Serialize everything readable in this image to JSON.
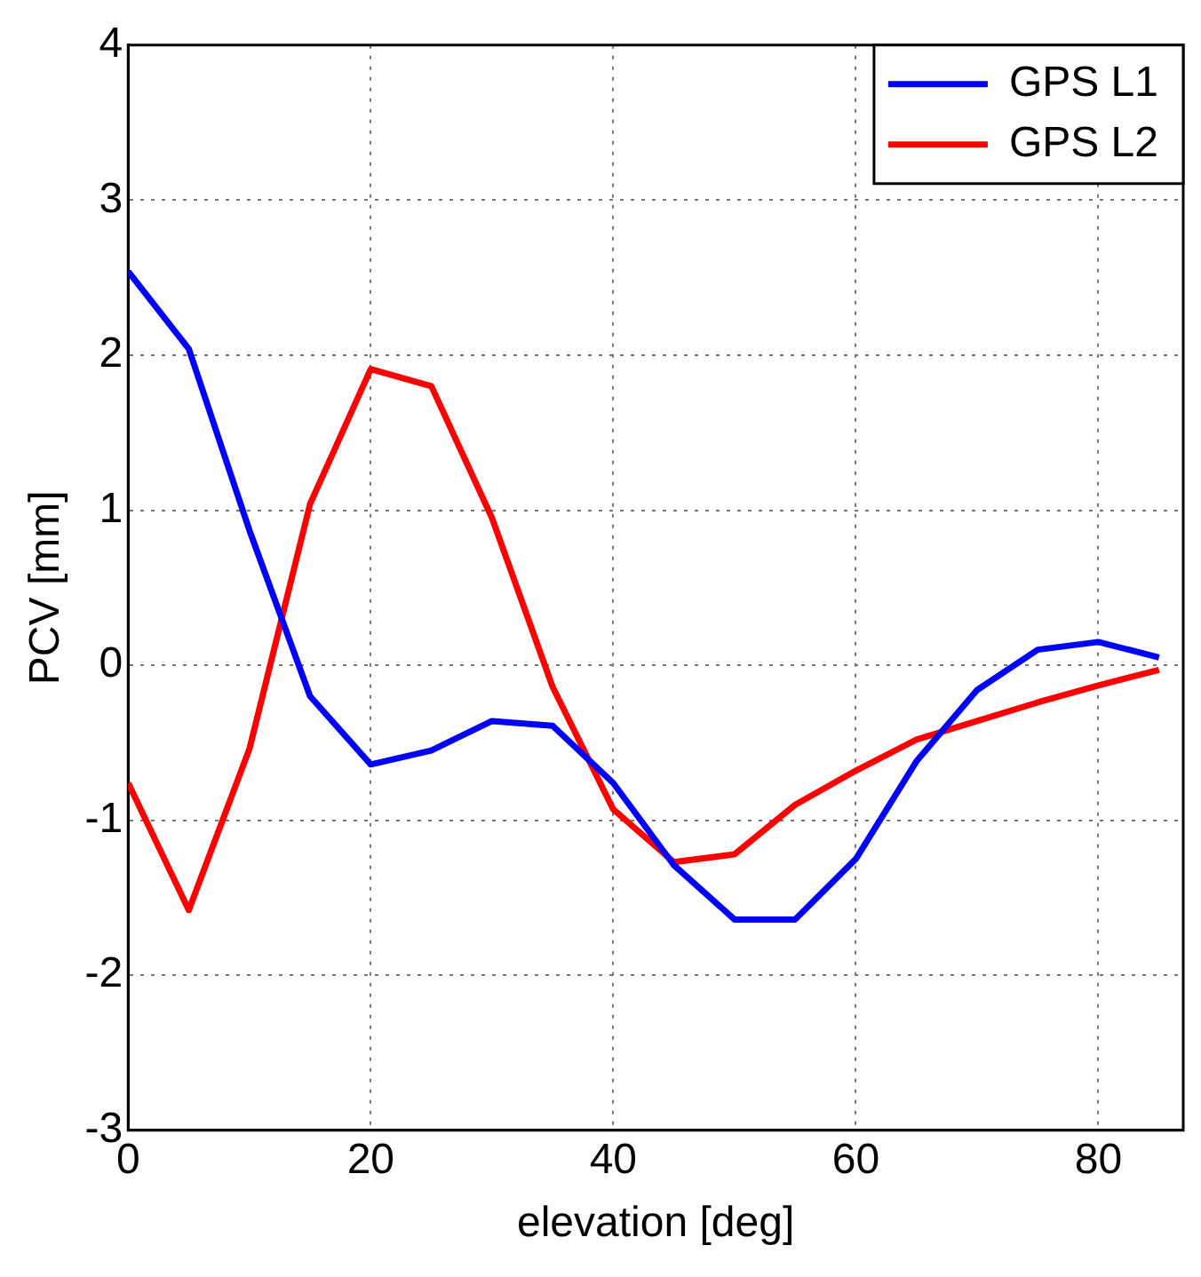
{
  "chart_data": {
    "type": "line",
    "xlabel": "elevation [deg]",
    "ylabel": "PCV [mm]",
    "x": [
      0,
      5,
      10,
      15,
      20,
      25,
      30,
      35,
      40,
      45,
      50,
      55,
      60,
      65,
      70,
      75,
      80,
      85
    ],
    "series": [
      {
        "name": "GPS L1",
        "color": "#0000ff",
        "values": [
          2.54,
          2.04,
          0.87,
          -0.2,
          -0.64,
          -0.55,
          -0.36,
          -0.39,
          -0.76,
          -1.29,
          -1.64,
          -1.64,
          -1.25,
          -0.62,
          -0.16,
          0.1,
          0.15,
          0.05
        ]
      },
      {
        "name": "GPS L2",
        "color": "#ff0000",
        "values": [
          -0.76,
          -1.58,
          -0.54,
          1.04,
          1.91,
          1.8,
          0.95,
          -0.14,
          -0.93,
          -1.27,
          -1.22,
          -0.9,
          -0.68,
          -0.48,
          -0.36,
          -0.24,
          -0.13,
          -0.03
        ]
      }
    ],
    "xlim": [
      0,
      87
    ],
    "xticks": [
      0,
      20,
      40,
      60,
      80
    ],
    "ylim": [
      -3,
      4
    ],
    "yticks": [
      -3,
      -2,
      -1,
      0,
      1,
      2,
      3,
      4
    ],
    "grid": true,
    "legend": "top right",
    "marker": "none",
    "line_style": "solid"
  }
}
